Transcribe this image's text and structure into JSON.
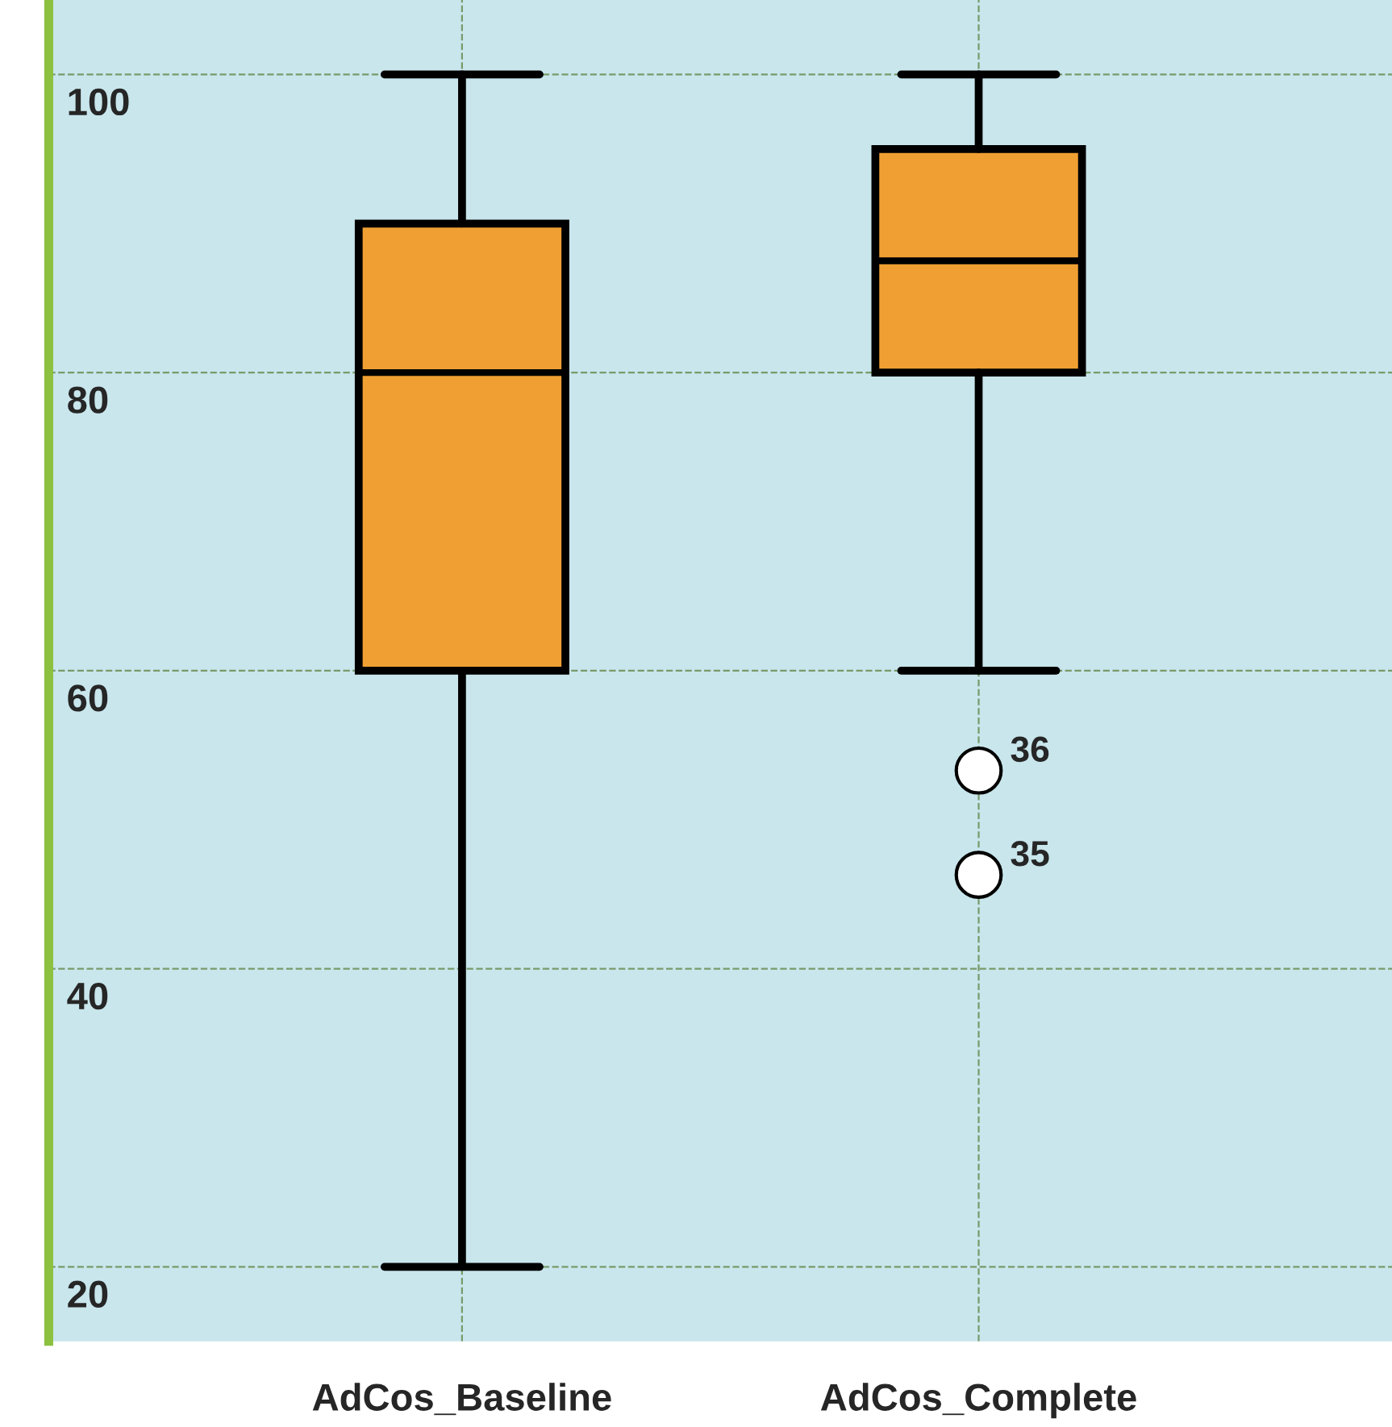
{
  "chart_data": {
    "type": "box",
    "categories": [
      "AdCos_Baseline",
      "AdCos_Complete"
    ],
    "boxes": [
      {
        "low": 20,
        "q1": 60,
        "median": 80,
        "q3": 90,
        "high": 100
      },
      {
        "low": 60,
        "q1": 80,
        "median": 87.5,
        "q3": 95,
        "high": 100,
        "outliers": [
          53.3,
          46.3
        ]
      }
    ],
    "color": "#f0a033",
    "ylim": [
      15,
      105
    ],
    "yticks": [
      20,
      40,
      60,
      80,
      100
    ],
    "grid": true,
    "annotations": [
      "36",
      "35"
    ]
  }
}
